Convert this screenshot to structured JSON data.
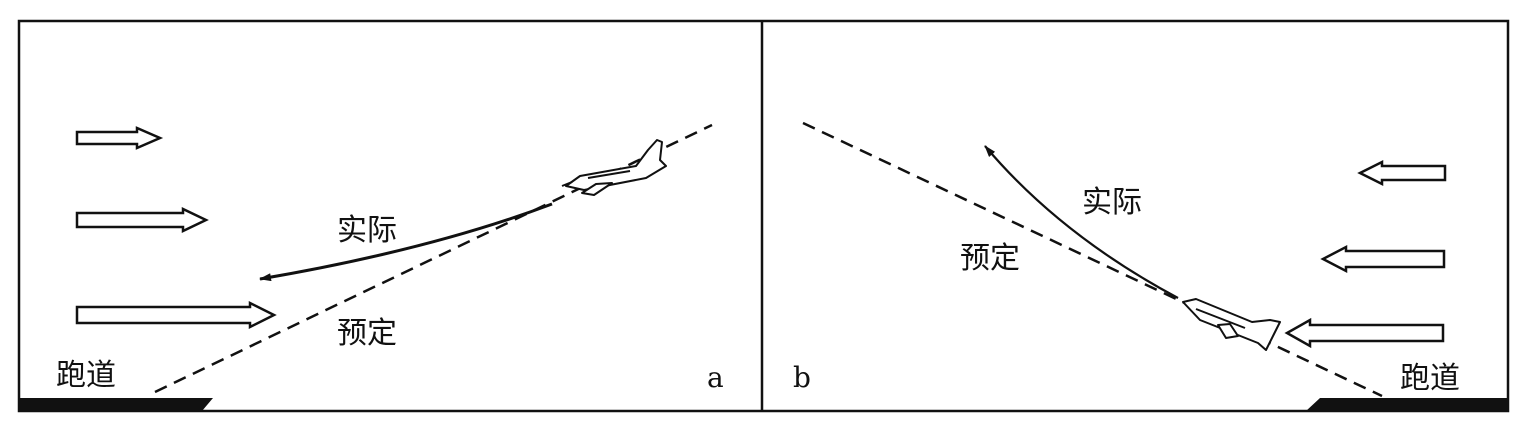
{
  "panel_a": {
    "panel_label": "a",
    "runway_label": "跑道",
    "actual_label": "实际",
    "planned_label": "预定"
  },
  "panel_b": {
    "panel_label": "b",
    "runway_label": "跑道",
    "actual_label": "实际",
    "planned_label": "预定"
  },
  "colors": {
    "ink": "#111111",
    "background": "#ffffff"
  }
}
